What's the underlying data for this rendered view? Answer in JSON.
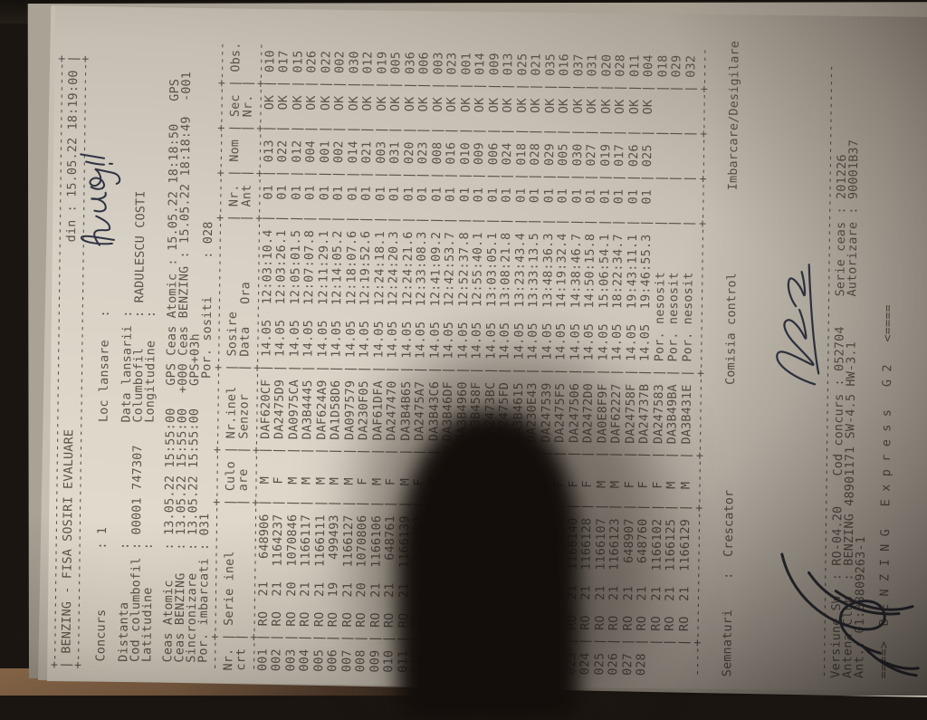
{
  "photo": {
    "background_color": "#1a1511",
    "table_surface_color": "#8a6748",
    "paper_color": "#d8d1c5",
    "ink_color": "#48423b",
    "pen_color": "#2e3344"
  },
  "document": {
    "title_box": {
      "title": "BENZING - FISA SOSIRI EVALUARE",
      "din_label": "din :",
      "din_value": "15.05.22 18:19:00"
    },
    "info_lines": [
      " Concurs        : 1              Loc lansare   :",
      " Distanta       :                Data lansarii :",
      " Cod columbofil : 00001 747307   Columbofil    : RADULESCU COSTI",
      " Latitudine     :                Longitudine   :",
      " Ceas Atomic    : 13.05.22 15:55:00   GPS Ceas Atomic : 15.05.22 18:18:50   GPS",
      " Ceas BENZING   : 13.05.22 15:55:00  +000 Ceas BENZING : 15.05.22 18:18:49  -001",
      " Sincronizare   : 13.05.22 15:55:00   GPS+03h",
      " Por. imbarcati : 031                  Por. sositi     : 028"
    ],
    "handwritten": {
      "loc_lansare": "Husi!",
      "signature": "Crescator signature",
      "corner_scribble": "pen scribble"
    },
    "table": {
      "header_line1": [
        "Nr.",
        "Serie inel",
        "Culo",
        "Nr.inel",
        "Sosire",
        "Nr.",
        "Nom",
        "Sec",
        "Obs."
      ],
      "header_line2": [
        "crt",
        "",
        "are",
        "Senzor",
        "Data   Ora",
        "Ant",
        "",
        "Nr.",
        ""
      ],
      "rows": [
        [
          "001",
          "21",
          "648906",
          "M",
          "DAF620CF",
          "14.05",
          "12:03:10.4",
          "01",
          "013",
          "OK",
          "010"
        ],
        [
          "002",
          "21",
          "1164237",
          "F",
          "DA2475D9",
          "14.05",
          "12:03:26.1",
          "01",
          "022",
          "OK",
          "017"
        ],
        [
          "003",
          "20",
          "1070846",
          "M",
          "DA0975CA",
          "14.05",
          "12:05:01.5",
          "01",
          "012",
          "OK",
          "015"
        ],
        [
          "004",
          "21",
          "1166117",
          "M",
          "DA3B4445",
          "14.05",
          "12:07:07.8",
          "01",
          "004",
          "OK",
          "026"
        ],
        [
          "005",
          "21",
          "1166111",
          "M",
          "DAF624A9",
          "14.05",
          "12:11:29.1",
          "01",
          "001",
          "OK",
          "022"
        ],
        [
          "006",
          "19",
          "499493",
          "M",
          "DA1D58D6",
          "14.05",
          "12:14:05.2",
          "01",
          "002",
          "OK",
          "002"
        ],
        [
          "007",
          "21",
          "1166127",
          "M",
          "DA097579",
          "14.05",
          "12:18:07.6",
          "01",
          "014",
          "OK",
          "030"
        ],
        [
          "008",
          "20",
          "1070806",
          "F",
          "DA230F05",
          "14.05",
          "12:19:52.6",
          "01",
          "021",
          "OK",
          "012"
        ],
        [
          "009",
          "21",
          "1166106",
          "M",
          "DAF61DFA",
          "14.05",
          "12:24:18.1",
          "01",
          "003",
          "OK",
          "019"
        ],
        [
          "010",
          "21",
          "648761",
          "F",
          "DA247470",
          "14.05",
          "12:24:20.3",
          "01",
          "031",
          "OK",
          "005"
        ],
        [
          "011",
          "21",
          "1166139",
          "M",
          "DA3B4B65",
          "14.05",
          "12:24:21.6",
          "01",
          "020",
          "OK",
          "036"
        ],
        [
          "012",
          "21",
          "648901",
          "F",
          "DA2475A7",
          "14.05",
          "12:33:08.3",
          "01",
          "023",
          "OK",
          "006"
        ],
        [
          "013",
          "19",
          "502110",
          "M",
          "DA3B43C6",
          "14.05",
          "12:41:09.2",
          "01",
          "008",
          "OK",
          "003"
        ],
        [
          "014",
          "21",
          "1166113",
          "M",
          "DA3B46DF",
          "14.05",
          "12:42:53.7",
          "01",
          "016",
          "OK",
          "023"
        ],
        [
          "015",
          "19",
          "51067",
          "M",
          "DA3B4960",
          "14.05",
          "12:52:37.8",
          "01",
          "010",
          "OK",
          "001"
        ],
        [
          "016",
          "20",
          "1070844",
          "M",
          "DA3B458F",
          "14.05",
          "12:55:40.1",
          "01",
          "009",
          "OK",
          "014"
        ],
        [
          "017",
          "21",
          "648905",
          "F",
          "DA2473BC",
          "14.05",
          "13:03:05.1",
          "01",
          "006",
          "OK",
          "009"
        ],
        [
          "018",
          "20",
          "1070809",
          "F",
          "DA2475FD",
          "14.05",
          "13:08:21.8",
          "01",
          "024",
          "OK",
          "013"
        ],
        [
          "019",
          "21",
          "1166115",
          "M",
          "DA3B4615",
          "14.05",
          "13:23:43.4",
          "01",
          "018",
          "OK",
          "025"
        ],
        [
          "020",
          "21",
          "1166110",
          "F",
          "DA230E43",
          "14.05",
          "13:33:13.5",
          "01",
          "028",
          "OK",
          "021"
        ],
        [
          "021",
          "21",
          "1166133",
          "F",
          "DA247539",
          "14.05",
          "13:48:36.3",
          "01",
          "029",
          "OK",
          "035"
        ],
        [
          "022",
          "21",
          "1150815",
          "F",
          "DA2475F5",
          "14.05",
          "14:19:32.4",
          "01",
          "005",
          "OK",
          "016"
        ],
        [
          "023",
          "21",
          "1166140",
          "F",
          "DA247506",
          "14.05",
          "14:38:46.7",
          "01",
          "030",
          "OK",
          "037"
        ],
        [
          "024",
          "21",
          "1166128",
          "F",
          "DA2472D0",
          "14.05",
          "14:50:15.8",
          "01",
          "027",
          "OK",
          "031"
        ],
        [
          "025",
          "21",
          "1166107",
          "M",
          "DA0E8F9F",
          "14.05",
          "15:06:54.1",
          "01",
          "019",
          "OK",
          "020"
        ],
        [
          "026",
          "21",
          "1166123",
          "M",
          "DAF62227",
          "14.05",
          "18:22:34.7",
          "01",
          "017",
          "OK",
          "028"
        ],
        [
          "027",
          "21",
          "648907",
          "F",
          "DA24758F",
          "14.05",
          "19:43:11.1",
          "01",
          "026",
          "OK",
          "011"
        ],
        [
          "028",
          "21",
          "648760",
          "F",
          "DA24737B",
          "14.05",
          "19:46:55.3",
          "01",
          "025",
          "OK",
          "004"
        ],
        [
          "",
          "21",
          "1166102",
          "F",
          "DA247583",
          "Por.",
          "nesosit",
          "",
          "",
          "",
          "018"
        ],
        [
          "",
          "21",
          "1166125",
          "M",
          "DA3B49BA",
          "Por.",
          "nesosit",
          "",
          "",
          "",
          "029"
        ],
        [
          "",
          "21",
          "1166129",
          "M",
          "DA3B431E",
          "Por.",
          "nesosit",
          "",
          "",
          "",
          "032"
        ]
      ]
    },
    "footer_lines": [
      "Semnaturi    :  Crescator              Comisia control           Imbarcare/Desigilare",
      "Versiune SW  : RO-04.20    Cod concurs : 052704    Serie ceas : 201226",
      "Antena Club  : BENZING 48901171 SW-4.5 HW-3.1      Autorizare : 90001B37",
      "Ant.: 01:38809263-1",
      "====>  B E N Z I N G   E x p r e s s   G 2   <===="
    ]
  }
}
